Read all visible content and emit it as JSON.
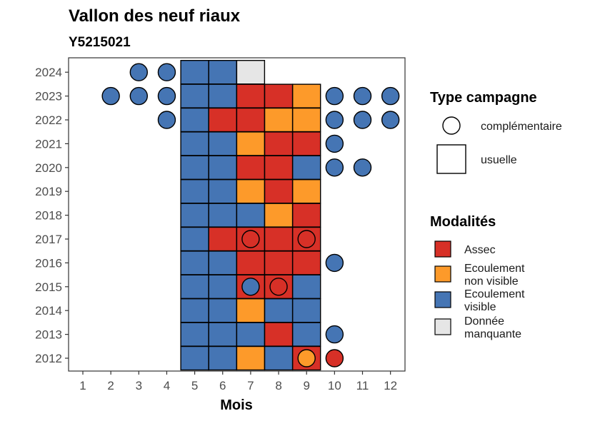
{
  "chart_data": {
    "type": "heatmap",
    "title": "Vallon des neuf riaux",
    "subtitle": "Y5215021",
    "xlabel": "Mois",
    "ylabel": "",
    "x": [
      1,
      2,
      3,
      4,
      5,
      6,
      7,
      8,
      9,
      10,
      11,
      12
    ],
    "y": [
      2012,
      2013,
      2014,
      2015,
      2016,
      2017,
      2018,
      2019,
      2020,
      2021,
      2022,
      2023,
      2024
    ],
    "colors": {
      "Assec": "#d73027",
      "Ecoulement non visible": "#fd9a2a",
      "Ecoulement visible": "#4575b4",
      "Donnée manquante": "#e6e6e6"
    },
    "usuelle": [
      {
        "year": 2012,
        "month": 5,
        "value": "Ecoulement visible"
      },
      {
        "year": 2012,
        "month": 6,
        "value": "Ecoulement visible"
      },
      {
        "year": 2012,
        "month": 7,
        "value": "Ecoulement non visible"
      },
      {
        "year": 2012,
        "month": 8,
        "value": "Ecoulement visible"
      },
      {
        "year": 2012,
        "month": 9,
        "value": "Assec"
      },
      {
        "year": 2013,
        "month": 5,
        "value": "Ecoulement visible"
      },
      {
        "year": 2013,
        "month": 6,
        "value": "Ecoulement visible"
      },
      {
        "year": 2013,
        "month": 7,
        "value": "Ecoulement visible"
      },
      {
        "year": 2013,
        "month": 8,
        "value": "Assec"
      },
      {
        "year": 2013,
        "month": 9,
        "value": "Ecoulement visible"
      },
      {
        "year": 2014,
        "month": 5,
        "value": "Ecoulement visible"
      },
      {
        "year": 2014,
        "month": 6,
        "value": "Ecoulement visible"
      },
      {
        "year": 2014,
        "month": 7,
        "value": "Ecoulement non visible"
      },
      {
        "year": 2014,
        "month": 8,
        "value": "Ecoulement visible"
      },
      {
        "year": 2014,
        "month": 9,
        "value": "Ecoulement visible"
      },
      {
        "year": 2015,
        "month": 5,
        "value": "Ecoulement visible"
      },
      {
        "year": 2015,
        "month": 6,
        "value": "Ecoulement visible"
      },
      {
        "year": 2015,
        "month": 7,
        "value": "Assec"
      },
      {
        "year": 2015,
        "month": 8,
        "value": "Assec"
      },
      {
        "year": 2015,
        "month": 9,
        "value": "Ecoulement visible"
      },
      {
        "year": 2016,
        "month": 5,
        "value": "Ecoulement visible"
      },
      {
        "year": 2016,
        "month": 6,
        "value": "Ecoulement visible"
      },
      {
        "year": 2016,
        "month": 7,
        "value": "Assec"
      },
      {
        "year": 2016,
        "month": 8,
        "value": "Assec"
      },
      {
        "year": 2016,
        "month": 9,
        "value": "Assec"
      },
      {
        "year": 2017,
        "month": 5,
        "value": "Ecoulement visible"
      },
      {
        "year": 2017,
        "month": 6,
        "value": "Assec"
      },
      {
        "year": 2017,
        "month": 7,
        "value": "Assec"
      },
      {
        "year": 2017,
        "month": 8,
        "value": "Assec"
      },
      {
        "year": 2017,
        "month": 9,
        "value": "Assec"
      },
      {
        "year": 2018,
        "month": 5,
        "value": "Ecoulement visible"
      },
      {
        "year": 2018,
        "month": 6,
        "value": "Ecoulement visible"
      },
      {
        "year": 2018,
        "month": 7,
        "value": "Ecoulement visible"
      },
      {
        "year": 2018,
        "month": 8,
        "value": "Ecoulement non visible"
      },
      {
        "year": 2018,
        "month": 9,
        "value": "Assec"
      },
      {
        "year": 2019,
        "month": 5,
        "value": "Ecoulement visible"
      },
      {
        "year": 2019,
        "month": 6,
        "value": "Ecoulement visible"
      },
      {
        "year": 2019,
        "month": 7,
        "value": "Ecoulement non visible"
      },
      {
        "year": 2019,
        "month": 8,
        "value": "Assec"
      },
      {
        "year": 2019,
        "month": 9,
        "value": "Ecoulement non visible"
      },
      {
        "year": 2020,
        "month": 5,
        "value": "Ecoulement visible"
      },
      {
        "year": 2020,
        "month": 6,
        "value": "Ecoulement visible"
      },
      {
        "year": 2020,
        "month": 7,
        "value": "Assec"
      },
      {
        "year": 2020,
        "month": 8,
        "value": "Assec"
      },
      {
        "year": 2020,
        "month": 9,
        "value": "Ecoulement visible"
      },
      {
        "year": 2021,
        "month": 5,
        "value": "Ecoulement visible"
      },
      {
        "year": 2021,
        "month": 6,
        "value": "Ecoulement visible"
      },
      {
        "year": 2021,
        "month": 7,
        "value": "Ecoulement non visible"
      },
      {
        "year": 2021,
        "month": 8,
        "value": "Assec"
      },
      {
        "year": 2021,
        "month": 9,
        "value": "Assec"
      },
      {
        "year": 2022,
        "month": 5,
        "value": "Ecoulement visible"
      },
      {
        "year": 2022,
        "month": 6,
        "value": "Assec"
      },
      {
        "year": 2022,
        "month": 7,
        "value": "Assec"
      },
      {
        "year": 2022,
        "month": 8,
        "value": "Ecoulement non visible"
      },
      {
        "year": 2022,
        "month": 9,
        "value": "Ecoulement non visible"
      },
      {
        "year": 2023,
        "month": 5,
        "value": "Ecoulement visible"
      },
      {
        "year": 2023,
        "month": 6,
        "value": "Ecoulement visible"
      },
      {
        "year": 2023,
        "month": 7,
        "value": "Assec"
      },
      {
        "year": 2023,
        "month": 8,
        "value": "Assec"
      },
      {
        "year": 2023,
        "month": 9,
        "value": "Ecoulement non visible"
      },
      {
        "year": 2024,
        "month": 5,
        "value": "Ecoulement visible"
      },
      {
        "year": 2024,
        "month": 6,
        "value": "Ecoulement visible"
      },
      {
        "year": 2024,
        "month": 7,
        "value": "Donnée manquante"
      }
    ],
    "complementaire": [
      {
        "year": 2012,
        "month": 9,
        "value": "Ecoulement non visible"
      },
      {
        "year": 2012,
        "month": 10,
        "value": "Assec"
      },
      {
        "year": 2013,
        "month": 10,
        "value": "Ecoulement visible"
      },
      {
        "year": 2015,
        "month": 7,
        "value": "Ecoulement visible"
      },
      {
        "year": 2015,
        "month": 8,
        "value": "Assec"
      },
      {
        "year": 2016,
        "month": 10,
        "value": "Ecoulement visible"
      },
      {
        "year": 2017,
        "month": 7,
        "value": "Assec"
      },
      {
        "year": 2017,
        "month": 9,
        "value": "Assec"
      },
      {
        "year": 2020,
        "month": 10,
        "value": "Ecoulement visible"
      },
      {
        "year": 2020,
        "month": 11,
        "value": "Ecoulement visible"
      },
      {
        "year": 2021,
        "month": 10,
        "value": "Ecoulement visible"
      },
      {
        "year": 2022,
        "month": 4,
        "value": "Ecoulement visible"
      },
      {
        "year": 2022,
        "month": 10,
        "value": "Ecoulement visible"
      },
      {
        "year": 2022,
        "month": 11,
        "value": "Ecoulement visible"
      },
      {
        "year": 2022,
        "month": 12,
        "value": "Ecoulement visible"
      },
      {
        "year": 2023,
        "month": 2,
        "value": "Ecoulement visible"
      },
      {
        "year": 2023,
        "month": 3,
        "value": "Ecoulement visible"
      },
      {
        "year": 2023,
        "month": 4,
        "value": "Ecoulement visible"
      },
      {
        "year": 2023,
        "month": 10,
        "value": "Ecoulement visible"
      },
      {
        "year": 2023,
        "month": 11,
        "value": "Ecoulement visible"
      },
      {
        "year": 2023,
        "month": 12,
        "value": "Ecoulement visible"
      },
      {
        "year": 2024,
        "month": 3,
        "value": "Ecoulement visible"
      },
      {
        "year": 2024,
        "month": 4,
        "value": "Ecoulement visible"
      }
    ],
    "legend": {
      "type_title": "Type campagne",
      "type_items": [
        {
          "label": "complémentaire",
          "shape": "circle"
        },
        {
          "label": "usuelle",
          "shape": "square"
        }
      ],
      "modalites_title": "Modalités",
      "modalites_items": [
        {
          "key": "Assec",
          "lines": [
            "Assec"
          ]
        },
        {
          "key": "Ecoulement non visible",
          "lines": [
            "Ecoulement",
            "non visible"
          ]
        },
        {
          "key": "Ecoulement visible",
          "lines": [
            "Ecoulement",
            "visible"
          ]
        },
        {
          "key": "Donnée manquante",
          "lines": [
            "Donnée",
            "manquante"
          ]
        }
      ]
    }
  }
}
